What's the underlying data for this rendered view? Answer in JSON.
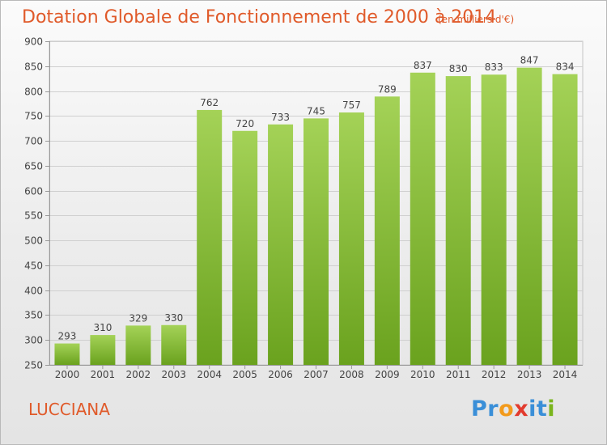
{
  "header": {
    "title": "Dotation Globale de Fonctionnement de 2000 à 2014",
    "subtitle": "(en milliers d'€)"
  },
  "footer": {
    "city": "LUCCIANA",
    "logo_text": "Proxiti",
    "logo_letters": [
      {
        "ch": "P",
        "color": "#3a8fd8"
      },
      {
        "ch": "r",
        "color": "#3a8fd8"
      },
      {
        "ch": "o",
        "color": "#f29a1c"
      },
      {
        "ch": "x",
        "color": "#e23b2e"
      },
      {
        "ch": "i",
        "color": "#3a8fd8"
      },
      {
        "ch": "t",
        "color": "#3a8fd8"
      },
      {
        "ch": "i",
        "color": "#7ab51d"
      }
    ]
  },
  "colors": {
    "accent": "#e05a2a",
    "bar_light": "#a4d257",
    "bar_dark": "#6aa21e"
  },
  "chart_data": {
    "type": "bar",
    "title": "Dotation Globale de Fonctionnement de 2000 à 2014",
    "subtitle": "(en milliers d'€)",
    "xlabel": "",
    "ylabel": "",
    "categories": [
      "2000",
      "2001",
      "2002",
      "2003",
      "2004",
      "2005",
      "2006",
      "2007",
      "2008",
      "2009",
      "2010",
      "2011",
      "2012",
      "2013",
      "2014"
    ],
    "values": [
      293,
      310,
      329,
      330,
      762,
      720,
      733,
      745,
      757,
      789,
      837,
      830,
      833,
      847,
      834
    ],
    "ylim": [
      250,
      900
    ],
    "yticks": [
      250,
      300,
      350,
      400,
      450,
      500,
      550,
      600,
      650,
      700,
      750,
      800,
      850,
      900
    ],
    "grid": true,
    "data_labels": true
  }
}
